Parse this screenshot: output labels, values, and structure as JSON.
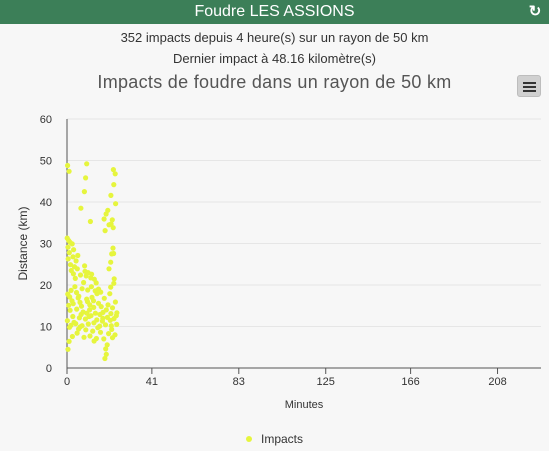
{
  "header": {
    "title": "Foudre LES ASSIONS",
    "refresh_icon": "refresh-icon"
  },
  "info": {
    "line1": "352 impacts depuis 4 heure(s) sur un rayon de 50 km",
    "line2": "Dernier impact à 48.16 kilomètre(s)"
  },
  "menu": {
    "icon": "hamburger-menu-icon"
  },
  "colors": {
    "header": "#3c7f58",
    "points": "#e6f53d",
    "plot_bg": "#f7f7f7"
  },
  "chart_data": {
    "type": "scatter",
    "title": "Impacts de foudre dans un rayon de 50 km",
    "xlabel": "Minutes",
    "ylabel": "Distance (km)",
    "xlim": [
      0,
      229
    ],
    "ylim": [
      0,
      60
    ],
    "xticks": [
      0,
      41,
      83,
      125,
      166,
      208
    ],
    "yticks": [
      0,
      10,
      20,
      30,
      40,
      50,
      60
    ],
    "grid": "horizontal",
    "legend_position": "bottom",
    "series": [
      {
        "name": "Impacts",
        "points": [
          [
            0.3,
            48.8
          ],
          [
            1.0,
            47.4
          ],
          [
            9.5,
            49.2
          ],
          [
            22.4,
            47.8
          ],
          [
            23.3,
            46.8
          ],
          [
            22.6,
            44.2
          ],
          [
            9.0,
            45.8
          ],
          [
            6.7,
            38.5
          ],
          [
            8.4,
            42.5
          ],
          [
            21.2,
            41.6
          ],
          [
            23.5,
            39.6
          ],
          [
            18.9,
            37.1
          ],
          [
            19.7,
            38.0
          ],
          [
            11.3,
            35.3
          ],
          [
            17.9,
            35.9
          ],
          [
            20.3,
            34.5
          ],
          [
            22.3,
            33.8
          ],
          [
            21.3,
            34.7
          ],
          [
            0.1,
            31.3
          ],
          [
            0.8,
            30.7
          ],
          [
            1.5,
            30.3
          ],
          [
            2.5,
            29.9
          ],
          [
            3.2,
            28.5
          ],
          [
            22.2,
            28.9
          ],
          [
            21.6,
            27.5
          ],
          [
            1.1,
            27.8
          ],
          [
            2.9,
            26.8
          ],
          [
            4.4,
            25.8
          ],
          [
            21.1,
            25.5
          ],
          [
            0.6,
            26.3
          ],
          [
            3.6,
            24.4
          ],
          [
            5.0,
            23.9
          ],
          [
            2.1,
            23.5
          ],
          [
            8.7,
            23.3
          ],
          [
            10.2,
            23.0
          ],
          [
            9.3,
            22.2
          ],
          [
            6.5,
            22.4
          ],
          [
            11.5,
            21.7
          ],
          [
            4.0,
            21.6
          ],
          [
            13.2,
            21.4
          ],
          [
            14.1,
            20.5
          ],
          [
            8.0,
            20.6
          ],
          [
            11.8,
            19.6
          ],
          [
            7.3,
            19.1
          ],
          [
            10.0,
            18.8
          ],
          [
            22.6,
            20.4
          ],
          [
            21.1,
            19.5
          ],
          [
            14.5,
            17.9
          ],
          [
            4.6,
            18.2
          ],
          [
            12.1,
            17.0
          ],
          [
            0.4,
            17.8
          ],
          [
            1.3,
            17.1
          ],
          [
            2.4,
            16.2
          ],
          [
            5.4,
            16.9
          ],
          [
            0.8,
            15.1
          ],
          [
            3.0,
            15.5
          ],
          [
            6.3,
            15.8
          ],
          [
            9.5,
            16.6
          ],
          [
            12.8,
            16.2
          ],
          [
            15.2,
            15.6
          ],
          [
            16.5,
            14.8
          ],
          [
            19.8,
            15.2
          ],
          [
            22.0,
            14.5
          ],
          [
            4.7,
            14.2
          ],
          [
            7.8,
            13.5
          ],
          [
            10.9,
            14.0
          ],
          [
            13.7,
            13.2
          ],
          [
            1.5,
            13.9
          ],
          [
            17.4,
            13.4
          ],
          [
            21.2,
            13.1
          ],
          [
            23.8,
            12.6
          ],
          [
            2.8,
            12.4
          ],
          [
            6.0,
            12.1
          ],
          [
            8.9,
            11.8
          ],
          [
            11.6,
            12.6
          ],
          [
            14.4,
            11.6
          ],
          [
            17.1,
            11.3
          ],
          [
            19.5,
            12.2
          ],
          [
            22.7,
            11.9
          ],
          [
            0.2,
            11.4
          ],
          [
            4.2,
            10.7
          ],
          [
            7.3,
            10.2
          ],
          [
            10.3,
            10.6
          ],
          [
            13.0,
            10.9
          ],
          [
            15.8,
            10.1
          ],
          [
            18.6,
            10.4
          ],
          [
            21.4,
            10.2
          ],
          [
            24.0,
            10.5
          ],
          [
            1.2,
            9.8
          ],
          [
            5.6,
            9.4
          ],
          [
            9.1,
            9.2
          ],
          [
            12.4,
            8.9
          ],
          [
            16.2,
            8.6
          ],
          [
            20.1,
            8.3
          ],
          [
            23.2,
            8.0
          ],
          [
            2.6,
            7.6
          ],
          [
            8.2,
            7.4
          ],
          [
            11.1,
            7.7
          ],
          [
            14.2,
            7.1
          ],
          [
            17.8,
            7.0
          ],
          [
            22.0,
            7.3
          ],
          [
            1.0,
            6.4
          ],
          [
            13.1,
            6.5
          ],
          [
            19.4,
            5.6
          ],
          [
            18.7,
            4.6
          ],
          [
            0.5,
            4.5
          ],
          [
            19.0,
            3.3
          ],
          [
            18.3,
            2.3
          ],
          [
            3.8,
            19.6
          ],
          [
            15.2,
            19.0
          ],
          [
            5.7,
            17.3
          ],
          [
            18.0,
            16.8
          ],
          [
            20.7,
            17.9
          ],
          [
            9.9,
            16.0
          ],
          [
            16.3,
            18.3
          ],
          [
            2.0,
            18.7
          ],
          [
            13.6,
            18.6
          ],
          [
            7.0,
            14.9
          ],
          [
            23.4,
            15.9
          ],
          [
            11.0,
            15.2
          ],
          [
            19.0,
            14.0
          ],
          [
            6.8,
            12.9
          ],
          [
            15.9,
            12.9
          ],
          [
            3.4,
            11.0
          ],
          [
            9.6,
            13.2
          ],
          [
            20.9,
            11.5
          ],
          [
            24.1,
            13.3
          ],
          [
            12.9,
            14.6
          ],
          [
            4.9,
            8.4
          ],
          [
            14.9,
            9.7
          ],
          [
            17.3,
            12.0
          ],
          [
            1.9,
            10.3
          ],
          [
            21.6,
            9.3
          ],
          [
            10.7,
            12.4
          ],
          [
            6.4,
            9.9
          ],
          [
            22.8,
            21.5
          ],
          [
            8.5,
            24.6
          ],
          [
            1.7,
            24.9
          ],
          [
            20.3,
            23.9
          ],
          [
            3.1,
            22.7
          ],
          [
            11.9,
            22.6
          ],
          [
            5.2,
            27.1
          ],
          [
            22.5,
            27.6
          ],
          [
            0.5,
            29.1
          ],
          [
            18.4,
            33.1
          ],
          [
            21.9,
            35.7
          ]
        ]
      }
    ]
  }
}
